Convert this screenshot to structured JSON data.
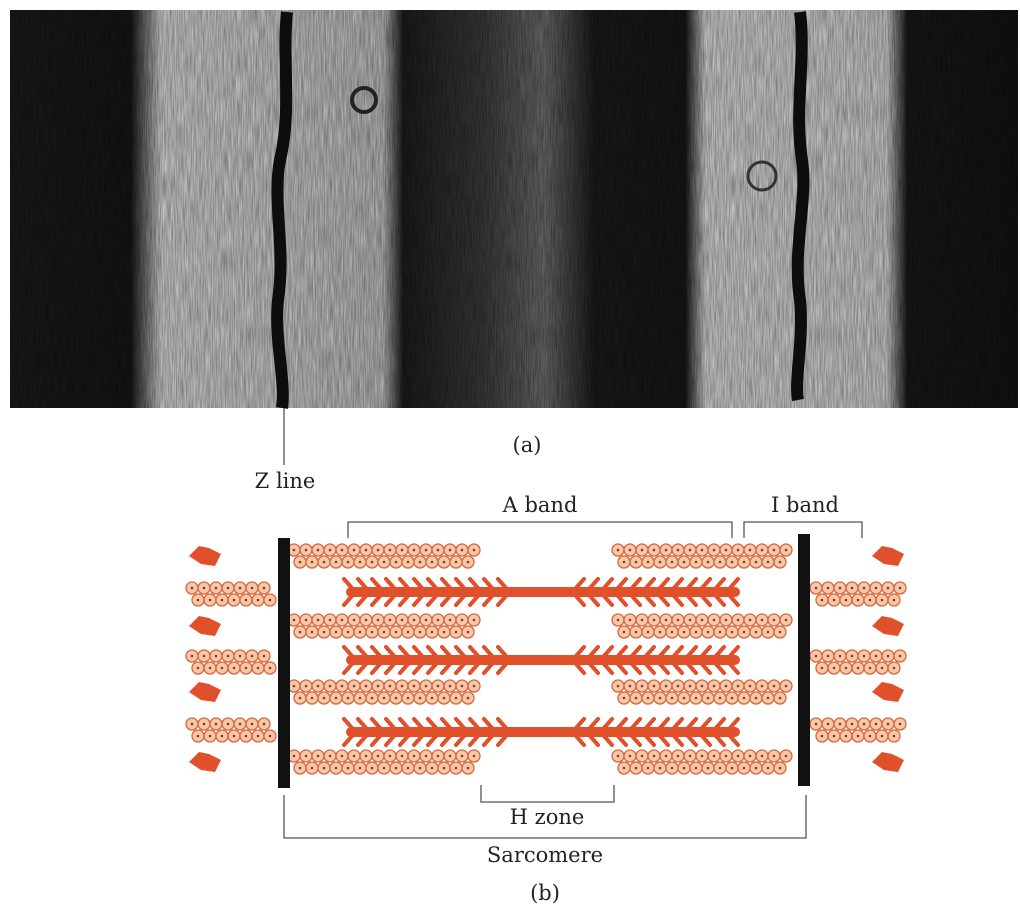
{
  "figure": {
    "panel_a_label": "(a)",
    "panel_b_label": "(b)"
  },
  "labels": {
    "z_line": "Z line",
    "a_band": "A band",
    "i_band": "I band",
    "h_zone": "H zone",
    "sarcomere": "Sarcomere"
  },
  "colors": {
    "background": "#ffffff",
    "myosin": "#e0502a",
    "actin_bead": "#f6c8aa",
    "actin_outline": "#d8653c",
    "z_disc": "#111111",
    "bracket": "#555555",
    "micrograph_light": "#c9c9c9",
    "micrograph_dark": "#121212"
  }
}
